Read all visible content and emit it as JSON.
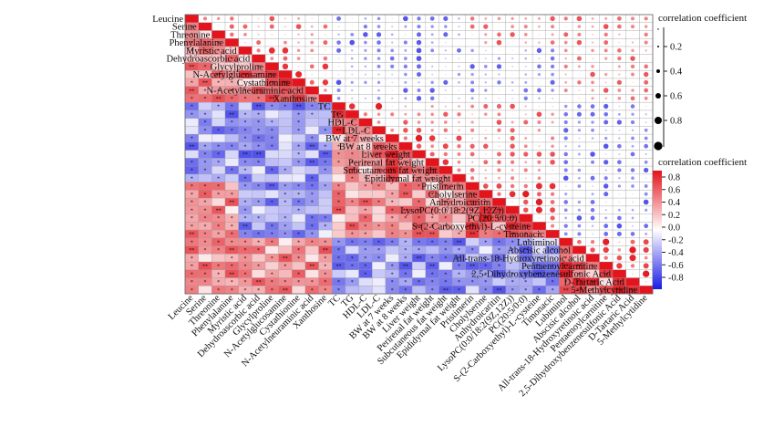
{
  "chart_data": {
    "type": "heatmap",
    "variables": [
      "Leucine",
      "Serine",
      "Threonine",
      "Phenylalanine",
      "Myristic acid",
      "Dehydroascorbic acid",
      "Glycylproline",
      "N-Acetylglucosamine",
      "Cystathionine",
      "N-Acetylneuraminic acid",
      "Xanthosine",
      "TC",
      "TG",
      "HDL-C",
      "LDL-C",
      "BW at 7 weeks",
      "BW at 8 weeks",
      "Liver weight",
      "Perirenal fat weight",
      "Subcutaneous fat weight",
      "Epididymal fat weight",
      "Pristimerin",
      "Cholylserine",
      "Anhydroicaritin",
      "LysoPC(0:0/18:2(9Z,12Z))",
      "PC(20:5/0:0)",
      "S-(2-Carboxyethyl)-L-cysteine",
      "Timonacic",
      "Lubiminol",
      "Abscisic alcohol",
      "All-trans-18-Hydroxyretinoic acid",
      "Pentaenoylcarnitine",
      "2,5-Dihydroxybenzenesulfonic Acid",
      "D-Tartaric Acid",
      "5-Methylcytidine"
    ],
    "groups": [
      [
        0,
        3
      ],
      [
        4,
        10
      ],
      [
        11,
        14
      ],
      [
        15,
        20
      ],
      [
        21,
        27
      ],
      [
        28,
        34
      ]
    ],
    "group_pattern": [
      [
        1,
        1,
        -1,
        -1,
        1,
        1
      ],
      [
        1,
        1,
        -1,
        -1,
        -1,
        1
      ],
      [
        -1,
        -1,
        1,
        1,
        1,
        -1
      ],
      [
        -1,
        -1,
        1,
        1,
        1,
        -1
      ],
      [
        1,
        -1,
        1,
        1,
        1,
        -1
      ],
      [
        1,
        1,
        -1,
        -1,
        -1,
        1
      ]
    ],
    "color_legend": {
      "title": "correlation coefficient",
      "ticks": [
        "0.8",
        "0.6",
        "0.4",
        "0.2",
        "0.0",
        "-0.2",
        "-0.4",
        "-0.6",
        "-0.8"
      ],
      "range": [
        -1,
        1
      ]
    },
    "size_legend": {
      "title": "correlation coefficient",
      "ticks": [
        "0.2",
        "0.4",
        "0.6",
        "0.8"
      ]
    },
    "colors": {
      "positive": "#e4141c",
      "negative": "#1a1ae6",
      "neutral": "#ffffff",
      "grid": "#9a9a9a"
    },
    "lower_triangle": "color squares with significance stars",
    "upper_triangle": "circles sized by |r|",
    "diagonal": "1.0"
  }
}
